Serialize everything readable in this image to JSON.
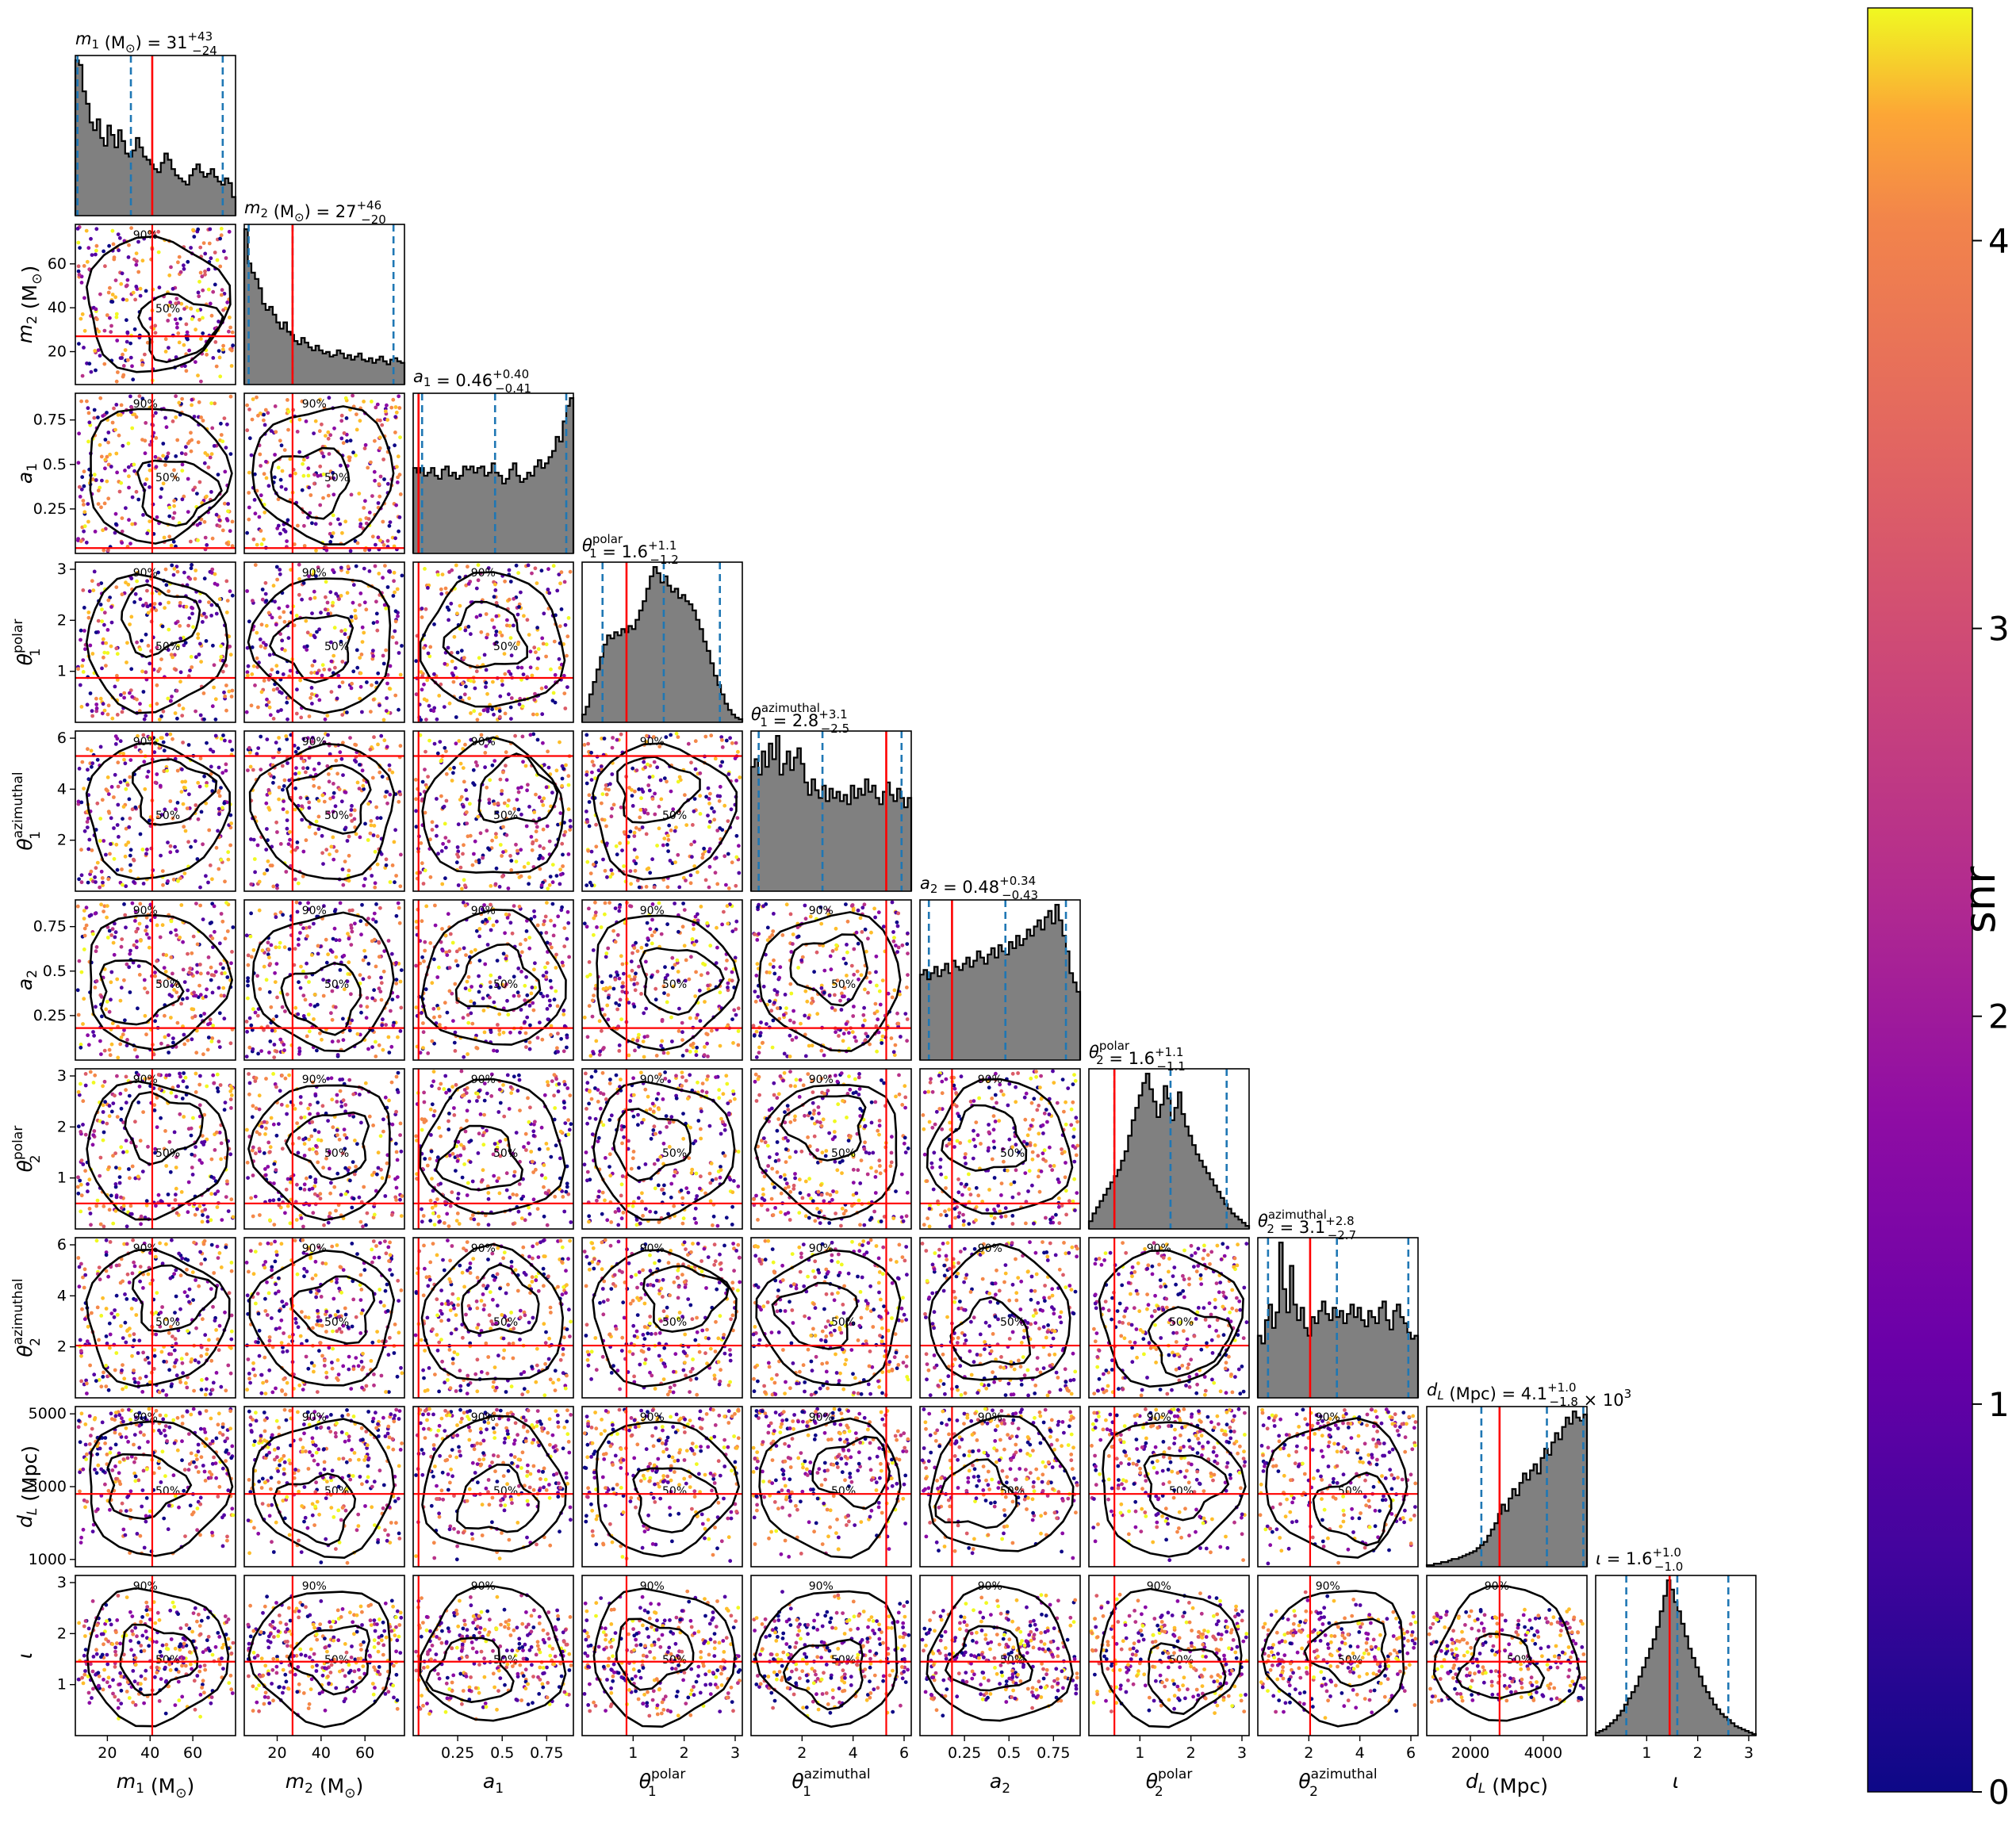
{
  "chart_data": {
    "type": "corner",
    "colorbar": {
      "label": "snr",
      "range": [
        0,
        4.6
      ],
      "ticks": [
        0,
        1,
        2,
        3,
        4
      ],
      "colormap": "plasma"
    },
    "contour_labels": [
      "50%",
      "90%"
    ],
    "truth_line_color": "#ff0000",
    "quantile_line_color": "#1f77b4",
    "params": [
      {
        "key": "m1",
        "sym": "m",
        "sub": "1",
        "sup": "",
        "unit": " (M",
        "unitsub": "⊙",
        "unitclose": ")",
        "range": [
          5,
          80
        ],
        "ticks": [
          20,
          40,
          60
        ],
        "title_prefix": " = ",
        "median": "31",
        "plus": "+43",
        "minus": "−24",
        "suffix": "",
        "truth": 41,
        "quantiles": [
          6,
          31,
          74
        ],
        "hist": [
          1.0,
          0.97,
          0.8,
          0.72,
          0.6,
          0.55,
          0.62,
          0.5,
          0.45,
          0.58,
          0.52,
          0.44,
          0.55,
          0.48,
          0.4,
          0.38,
          0.42,
          0.5,
          0.44,
          0.38,
          0.36,
          0.33,
          0.3,
          0.28,
          0.34,
          0.4,
          0.36,
          0.3,
          0.26,
          0.24,
          0.22,
          0.2,
          0.26,
          0.3,
          0.33,
          0.28,
          0.25,
          0.27,
          0.3,
          0.25,
          0.22,
          0.2,
          0.24,
          0.21,
          0.12
        ]
      },
      {
        "key": "m2",
        "sym": "m",
        "sub": "2",
        "sup": "",
        "unit": " (M",
        "unitsub": "⊙",
        "unitclose": ")",
        "range": [
          5,
          78
        ],
        "ticks": [
          20,
          40,
          60
        ],
        "title_prefix": " = ",
        "median": "27",
        "plus": "+46",
        "minus": "−20",
        "suffix": "",
        "truth": 27,
        "quantiles": [
          7,
          27,
          73
        ],
        "hist": [
          1.0,
          0.78,
          0.72,
          0.68,
          0.62,
          0.52,
          0.48,
          0.5,
          0.45,
          0.4,
          0.36,
          0.4,
          0.34,
          0.32,
          0.28,
          0.26,
          0.3,
          0.27,
          0.24,
          0.22,
          0.25,
          0.22,
          0.2,
          0.21,
          0.18,
          0.19,
          0.22,
          0.2,
          0.17,
          0.19,
          0.16,
          0.18,
          0.2,
          0.16,
          0.15,
          0.17,
          0.14,
          0.16,
          0.18,
          0.15,
          0.13,
          0.16,
          0.17,
          0.15,
          0.14
        ]
      },
      {
        "key": "a1",
        "sym": "a",
        "sub": "1",
        "sup": "",
        "unit": "",
        "unitsub": "",
        "unitclose": "",
        "range": [
          0,
          0.9
        ],
        "ticks": [
          0.25,
          0.5,
          0.75
        ],
        "title_prefix": " = ",
        "median": "0.46",
        "plus": "+0.40",
        "minus": "−0.41",
        "suffix": "",
        "truth": 0.03,
        "quantiles": [
          0.05,
          0.46,
          0.86
        ],
        "hist": [
          0.55,
          0.52,
          0.55,
          0.5,
          0.52,
          0.55,
          0.5,
          0.48,
          0.54,
          0.56,
          0.5,
          0.52,
          0.48,
          0.5,
          0.56,
          0.54,
          0.56,
          0.52,
          0.55,
          0.56,
          0.5,
          0.52,
          0.58,
          0.52,
          0.5,
          0.45,
          0.48,
          0.54,
          0.58,
          0.5,
          0.46,
          0.48,
          0.52,
          0.5,
          0.56,
          0.6,
          0.55,
          0.58,
          0.62,
          0.66,
          0.75,
          0.72,
          0.85,
          0.95,
          1.0
        ]
      },
      {
        "key": "t1p",
        "sym": "θ",
        "sub": "1",
        "sup": "polar",
        "unit": "",
        "unitsub": "",
        "unitclose": "",
        "range": [
          0,
          3.14
        ],
        "ticks": [
          1,
          2,
          3
        ],
        "title_prefix": " = ",
        "median": "1.6",
        "plus": "+1.1",
        "minus": "−1.2",
        "suffix": "",
        "truth": 0.87,
        "quantiles": [
          0.4,
          1.6,
          2.7
        ],
        "hist": [
          0.05,
          0.1,
          0.18,
          0.26,
          0.34,
          0.42,
          0.5,
          0.56,
          0.54,
          0.58,
          0.56,
          0.6,
          0.58,
          0.62,
          0.6,
          0.66,
          0.72,
          0.78,
          0.86,
          0.94,
          1.0,
          0.96,
          0.9,
          0.94,
          0.88,
          0.84,
          0.86,
          0.8,
          0.82,
          0.78,
          0.76,
          0.72,
          0.66,
          0.6,
          0.52,
          0.46,
          0.38,
          0.3,
          0.24,
          0.18,
          0.12,
          0.08,
          0.05,
          0.03,
          0.02
        ]
      },
      {
        "key": "t1a",
        "sym": "θ",
        "sub": "1",
        "sup": "azimuthal",
        "unit": "",
        "unitsub": "",
        "unitclose": "",
        "range": [
          0,
          6.28
        ],
        "ticks": [
          2,
          4,
          6
        ],
        "title_prefix": " = ",
        "median": "2.8",
        "plus": "+3.1",
        "minus": "−2.5",
        "suffix": "",
        "truth": 5.3,
        "quantiles": [
          0.3,
          2.8,
          5.9
        ],
        "hist": [
          0.8,
          0.85,
          0.75,
          0.9,
          0.8,
          0.95,
          0.85,
          1.0,
          0.75,
          0.82,
          0.9,
          0.78,
          0.86,
          0.92,
          0.82,
          0.7,
          0.62,
          0.72,
          0.65,
          0.6,
          0.68,
          0.58,
          0.66,
          0.6,
          0.64,
          0.58,
          0.62,
          0.56,
          0.68,
          0.6,
          0.66,
          0.62,
          0.72,
          0.64,
          0.68,
          0.6,
          0.56,
          0.64,
          0.7,
          0.62,
          0.58,
          0.66,
          0.6,
          0.54,
          0.6
        ]
      },
      {
        "key": "a2",
        "sym": "a",
        "sub": "2",
        "sup": "",
        "unit": "",
        "unitsub": "",
        "unitclose": "",
        "range": [
          0,
          0.9
        ],
        "ticks": [
          0.25,
          0.5,
          0.75
        ],
        "title_prefix": " = ",
        "median": "0.48",
        "plus": "+0.34",
        "minus": "−0.43",
        "suffix": "",
        "truth": 0.18,
        "quantiles": [
          0.05,
          0.48,
          0.82
        ],
        "hist": [
          0.55,
          0.58,
          0.52,
          0.56,
          0.6,
          0.54,
          0.58,
          0.62,
          0.56,
          0.64,
          0.6,
          0.58,
          0.62,
          0.66,
          0.6,
          0.64,
          0.7,
          0.66,
          0.62,
          0.68,
          0.72,
          0.66,
          0.74,
          0.7,
          0.68,
          0.76,
          0.72,
          0.8,
          0.74,
          0.78,
          0.84,
          0.8,
          0.86,
          0.9,
          0.84,
          0.92,
          0.96,
          0.88,
          1.0,
          0.9,
          0.8,
          0.7,
          0.56,
          0.5,
          0.44
        ]
      },
      {
        "key": "t2p",
        "sym": "θ",
        "sub": "2",
        "sup": "polar",
        "unit": "",
        "unitsub": "",
        "unitclose": "",
        "range": [
          0,
          3.14
        ],
        "ticks": [
          1,
          2,
          3
        ],
        "title_prefix": " = ",
        "median": "1.6",
        "plus": "+1.1",
        "minus": "−1.1",
        "suffix": "",
        "truth": 0.5,
        "quantiles": [
          0.5,
          1.6,
          2.7
        ],
        "hist": [
          0.05,
          0.1,
          0.14,
          0.18,
          0.22,
          0.26,
          0.3,
          0.34,
          0.38,
          0.44,
          0.5,
          0.6,
          0.7,
          0.78,
          0.86,
          0.94,
          1.0,
          0.9,
          0.82,
          0.72,
          0.8,
          0.92,
          0.84,
          0.7,
          0.78,
          0.88,
          0.74,
          0.66,
          0.6,
          0.54,
          0.48,
          0.44,
          0.4,
          0.36,
          0.32,
          0.28,
          0.24,
          0.2,
          0.16,
          0.13,
          0.1,
          0.08,
          0.06,
          0.04,
          0.02
        ]
      },
      {
        "key": "t2a",
        "sym": "θ",
        "sub": "2",
        "sup": "azimuthal",
        "unit": "",
        "unitsub": "",
        "unitclose": "",
        "range": [
          0,
          6.28
        ],
        "ticks": [
          2,
          4,
          6
        ],
        "title_prefix": " = ",
        "median": "3.1",
        "plus": "+2.8",
        "minus": "−2.7",
        "suffix": "",
        "truth": 2.05,
        "quantiles": [
          0.4,
          3.1,
          5.9
        ],
        "hist": [
          0.4,
          0.35,
          0.5,
          0.6,
          0.45,
          0.55,
          1.0,
          0.7,
          0.55,
          0.85,
          0.6,
          0.5,
          0.58,
          0.45,
          0.4,
          0.52,
          0.48,
          0.56,
          0.62,
          0.54,
          0.5,
          0.58,
          0.52,
          0.56,
          0.48,
          0.54,
          0.6,
          0.52,
          0.58,
          0.5,
          0.46,
          0.56,
          0.52,
          0.48,
          0.58,
          0.62,
          0.5,
          0.44,
          0.56,
          0.6,
          0.52,
          0.48,
          0.42,
          0.38,
          0.4
        ]
      },
      {
        "key": "dL",
        "sym": "d",
        "sub": "L",
        "sup": "",
        "unit": " (Mpc)",
        "unitsub": "",
        "unitclose": "",
        "range": [
          800,
          5200
        ],
        "ticks": [
          2000,
          4000
        ],
        "ylabel_ticks": [
          1000,
          3000,
          5000
        ],
        "title_prefix": " = ",
        "median": "4.1",
        "plus": "+1.0",
        "minus": "−1.8",
        "suffix": " × 10",
        "suffix_exp": "3",
        "truth": 2800,
        "quantiles": [
          2300,
          4100,
          5100
        ],
        "hist": [
          0.01,
          0.01,
          0.02,
          0.02,
          0.03,
          0.03,
          0.04,
          0.05,
          0.05,
          0.06,
          0.07,
          0.08,
          0.09,
          0.1,
          0.12,
          0.14,
          0.16,
          0.2,
          0.24,
          0.28,
          0.34,
          0.4,
          0.36,
          0.44,
          0.5,
          0.46,
          0.54,
          0.6,
          0.56,
          0.62,
          0.66,
          0.6,
          0.7,
          0.76,
          0.72,
          0.8,
          0.86,
          0.82,
          0.9,
          0.96,
          0.92,
          1.0,
          0.96,
          0.94,
          0.98
        ]
      },
      {
        "key": "iota",
        "sym": "ι",
        "sub": "",
        "sup": "",
        "unit": "",
        "unitsub": "",
        "unitclose": "",
        "range": [
          0,
          3.14
        ],
        "ticks": [
          1,
          2,
          3
        ],
        "title_prefix": " = ",
        "median": "1.6",
        "plus": "+1.0",
        "minus": "−1.0",
        "suffix": "",
        "truth": 1.45,
        "quantiles": [
          0.6,
          1.6,
          2.6
        ],
        "hist": [
          0.02,
          0.03,
          0.04,
          0.06,
          0.08,
          0.1,
          0.13,
          0.16,
          0.2,
          0.24,
          0.28,
          0.32,
          0.38,
          0.44,
          0.5,
          0.56,
          0.62,
          0.7,
          0.8,
          0.9,
          1.0,
          0.94,
          0.86,
          0.8,
          0.72,
          0.64,
          0.56,
          0.5,
          0.44,
          0.38,
          0.32,
          0.28,
          0.24,
          0.2,
          0.17,
          0.14,
          0.12,
          0.1,
          0.08,
          0.06,
          0.05,
          0.04,
          0.03,
          0.02,
          0.01
        ]
      }
    ]
  }
}
